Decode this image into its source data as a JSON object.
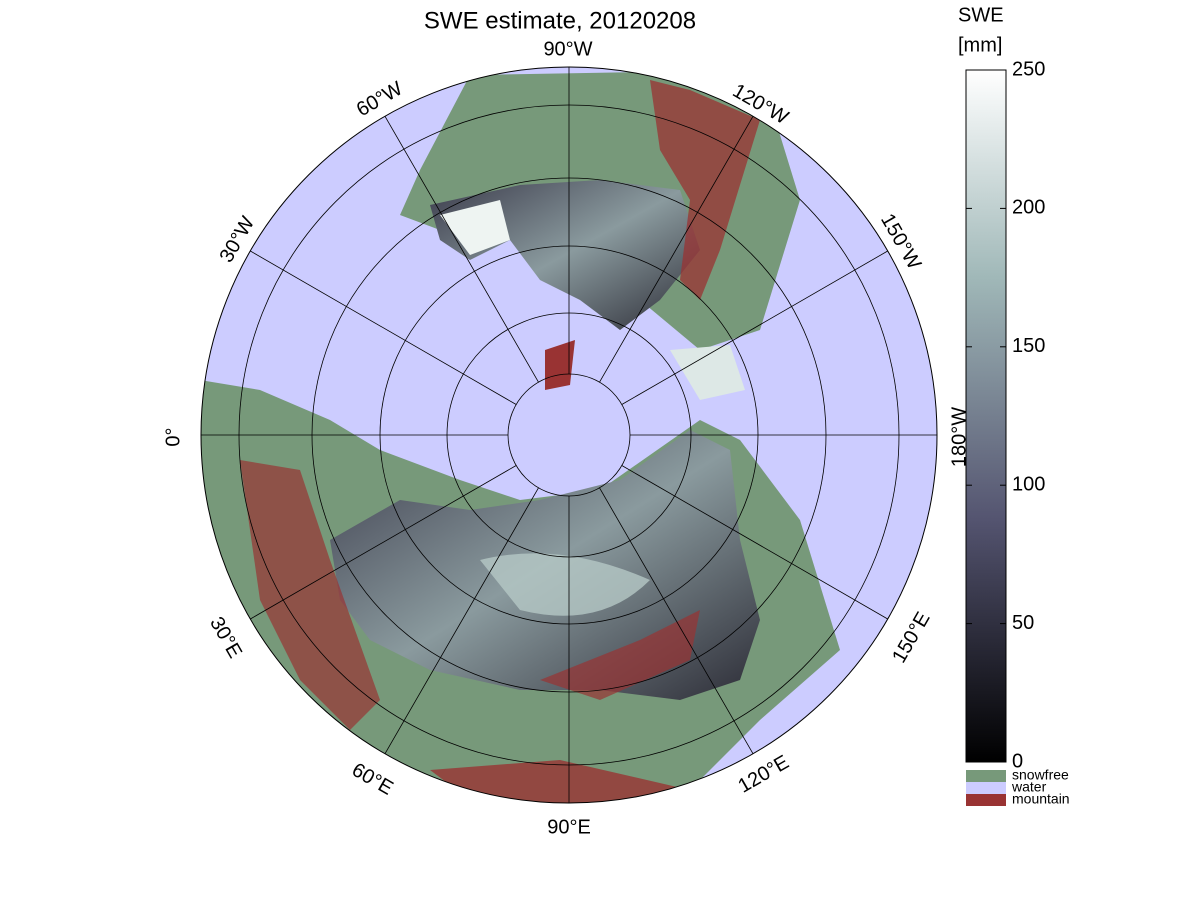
{
  "title": "SWE estimate, 20120208",
  "meridian_labels": [
    "90°W",
    "60°W",
    "30°W",
    "0°",
    "30°E",
    "60°E",
    "90°E",
    "120°E",
    "150°E",
    "180°W",
    "150°W",
    "120°W"
  ],
  "colorbar": {
    "label": [
      "SWE",
      "[mm]"
    ],
    "lim": [
      0,
      250
    ],
    "ticks": [
      0,
      50,
      100,
      150,
      200,
      250
    ]
  },
  "legend": [
    {
      "name": "snowfree",
      "color": "#77997a"
    },
    {
      "name": "water",
      "color": "#ccccff"
    },
    {
      "name": "mountain",
      "color": "#993333"
    }
  ]
}
